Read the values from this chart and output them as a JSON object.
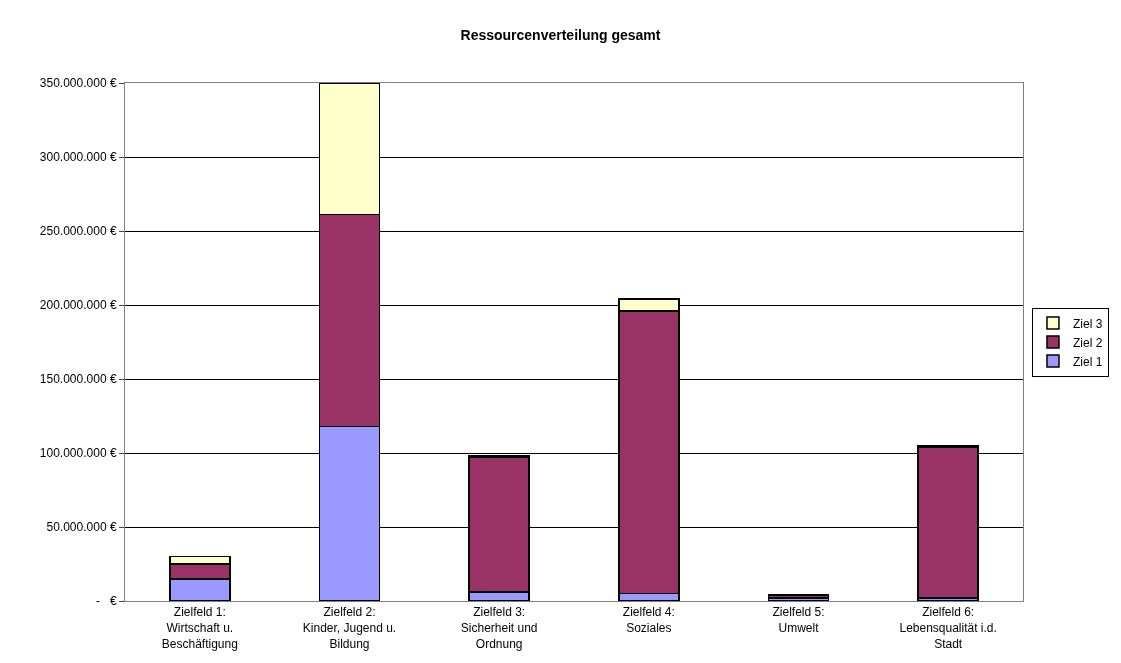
{
  "chart_data": {
    "type": "bar",
    "title": "Ressourcenverteilung gesamt",
    "categories": [
      "Zielfeld 1:\nWirtschaft u.\nBeschäftigung",
      "Zielfeld 2:\nKinder, Jugend u.\nBildung",
      "Zielfeld 3:\nSicherheit und\nOrdnung",
      "Zielfeld 4:\nSoziales",
      "Zielfeld 5:\nUmwelt",
      "Zielfeld 6:\nLebensqualität i.d.\nStadt"
    ],
    "stacked": true,
    "series": [
      {
        "name": "Ziel 1",
        "color": "#9999ff",
        "values": [
          15000000,
          118000000,
          6000000,
          5000000,
          2000000,
          2000000
        ]
      },
      {
        "name": "Ziel 2",
        "color": "#993366",
        "values": [
          10000000,
          143000000,
          91000000,
          191000000,
          2000000,
          102000000
        ]
      },
      {
        "name": "Ziel 3",
        "color": "#ffffcc",
        "values": [
          5000000,
          89000000,
          1000000,
          8000000,
          500000,
          1000000
        ]
      }
    ],
    "ylim": [
      0,
      350000000
    ],
    "yticks": [
      {
        "value": 0,
        "label": "-   €"
      },
      {
        "value": 50000000,
        "label": "50.000.000 €"
      },
      {
        "value": 100000000,
        "label": "100.000.000 €"
      },
      {
        "value": 150000000,
        "label": "150.000.000 €"
      },
      {
        "value": 200000000,
        "label": "200.000.000 €"
      },
      {
        "value": 250000000,
        "label": "250.000.000 €"
      },
      {
        "value": 300000000,
        "label": "300.000.000 €"
      },
      {
        "value": 350000000,
        "label": "350.000.000 €"
      }
    ],
    "grid": "y",
    "legend": "right"
  }
}
